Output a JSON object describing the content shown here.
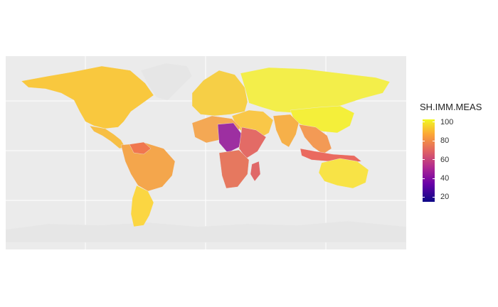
{
  "map": {
    "type": "choropleth",
    "projection": "equirectangular",
    "background": "#ebebeb",
    "grid": true,
    "no_data_color": "#e6e6e6",
    "regions": [
      {
        "name": "North America",
        "color": "#f9c83e",
        "value": 92
      },
      {
        "name": "Greenland",
        "color": "#e6e6e6",
        "value": null
      },
      {
        "name": "Central America",
        "color": "#f7bf44",
        "value": 90
      },
      {
        "name": "Venezuela",
        "color": "#f0774f",
        "value": 75
      },
      {
        "name": "South America north",
        "color": "#f4a64c",
        "value": 86
      },
      {
        "name": "South America south",
        "color": "#fbd642",
        "value": 95
      },
      {
        "name": "Europe",
        "color": "#f6cf46",
        "value": 94
      },
      {
        "name": "Russia and Central Asia",
        "color": "#f3ee4a",
        "value": 98
      },
      {
        "name": "Middle East",
        "color": "#f9c748",
        "value": 92
      },
      {
        "name": "India",
        "color": "#f6b049",
        "value": 88
      },
      {
        "name": "China",
        "color": "#f4ef3a",
        "value": 99
      },
      {
        "name": "Southeast Asia",
        "color": "#f39a55",
        "value": 82
      },
      {
        "name": "Indonesia",
        "color": "#ea6a5f",
        "value": 72
      },
      {
        "name": "West Africa",
        "color": "#f4a854",
        "value": 86
      },
      {
        "name": "Central Africa",
        "color": "#9d2fa1",
        "value": 52
      },
      {
        "name": "East Africa",
        "color": "#e36b66",
        "value": 70
      },
      {
        "name": "Southern Africa",
        "color": "#e6785f",
        "value": 74
      },
      {
        "name": "Madagascar",
        "color": "#e06868",
        "value": 70
      },
      {
        "name": "Australia",
        "color": "#f8e346",
        "value": 96
      },
      {
        "name": "Antarctica",
        "color": "#e6e6e6",
        "value": null
      }
    ]
  },
  "legend": {
    "title": "SH.IMM.MEAS",
    "min": 15,
    "max": 103,
    "ticks": [
      {
        "value": 20,
        "label": "20"
      },
      {
        "value": 40,
        "label": "40"
      },
      {
        "value": 60,
        "label": "60"
      },
      {
        "value": 80,
        "label": "80"
      },
      {
        "value": 100,
        "label": "100"
      }
    ]
  }
}
